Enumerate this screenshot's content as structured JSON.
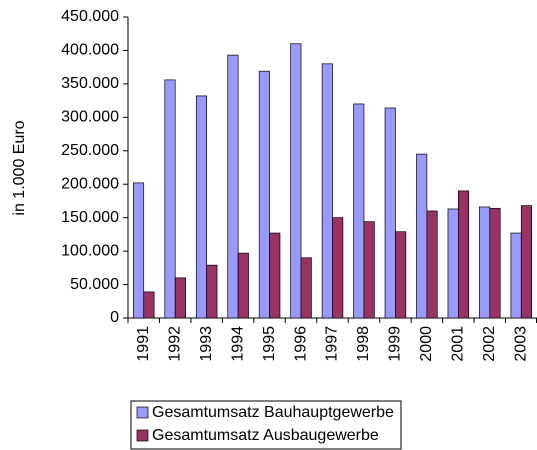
{
  "chart_data": {
    "type": "bar",
    "y_label": "in 1.000 Euro",
    "categories": [
      "1991",
      "1992",
      "1993",
      "1994",
      "1995",
      "1996",
      "1997",
      "1998",
      "1999",
      "2000",
      "2001",
      "2002",
      "2003"
    ],
    "series": [
      {
        "name": "Gesamtumsatz Bauhauptgewerbe",
        "color": "#9999ff",
        "values": [
          202000,
          356000,
          332000,
          393000,
          369000,
          410000,
          380000,
          320000,
          314000,
          245000,
          163000,
          166000,
          127000
        ]
      },
      {
        "name": "Gesamtumsatz Ausbaugewerbe",
        "color": "#993366",
        "values": [
          39000,
          60000,
          79000,
          97000,
          127000,
          90000,
          150000,
          144000,
          129000,
          160000,
          190000,
          164000,
          168000
        ]
      }
    ],
    "ylim": [
      0,
      450000
    ],
    "yticks": [
      0,
      {
        "value": 50000,
        "label": "50.000"
      },
      {
        "value": 100000,
        "label": "100.000"
      },
      {
        "value": 150000,
        "label": "150.000"
      },
      {
        "value": 200000,
        "label": "200.000"
      },
      {
        "value": 250000,
        "label": "250.000"
      },
      {
        "value": 300000,
        "label": "300.000"
      },
      {
        "value": 350000,
        "label": "350.000"
      },
      {
        "value": 400000,
        "label": "400.000"
      },
      {
        "value": 450000,
        "label": "450.000"
      }
    ],
    "grid": false
  }
}
